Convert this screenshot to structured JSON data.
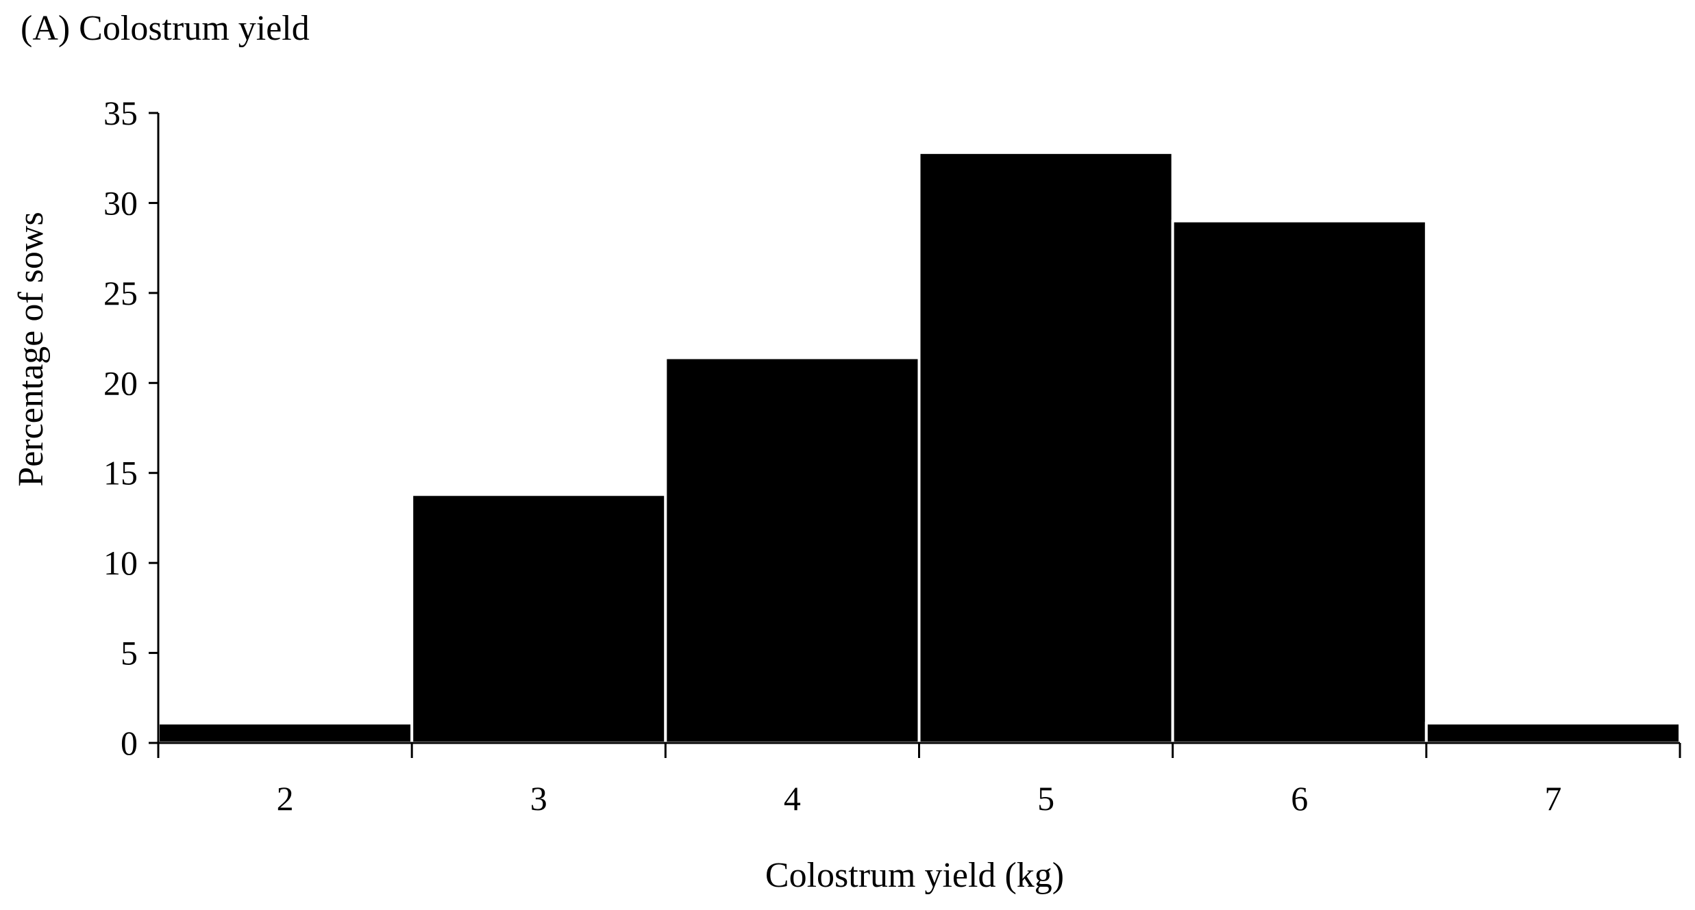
{
  "chart_data": {
    "type": "bar",
    "title": "(A) Colostrum yield",
    "xlabel": "Colostrum yield (kg)",
    "ylabel": "Percentage of sows",
    "categories": [
      "2",
      "3",
      "4",
      "5",
      "6",
      "7"
    ],
    "values": [
      1.1,
      13.8,
      21.4,
      32.8,
      29.0,
      1.1
    ],
    "ylim": [
      0,
      35
    ],
    "yticks": [
      "0",
      "5",
      "10",
      "15",
      "20",
      "25",
      "30",
      "35"
    ],
    "grid": false,
    "legend": "none",
    "colors": {
      "bar": "#000000",
      "bar_separator": "#ffffff",
      "axis": "#000000",
      "background": "#ffffff"
    }
  }
}
